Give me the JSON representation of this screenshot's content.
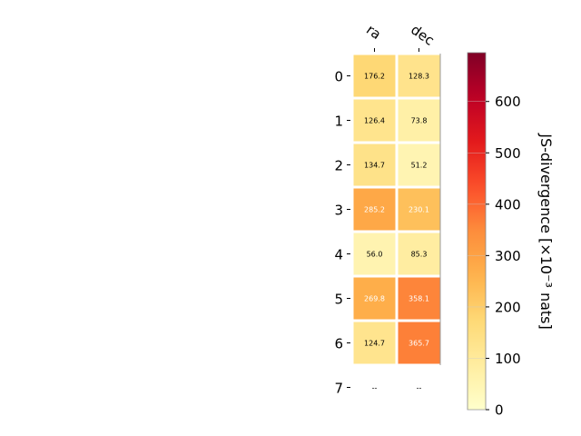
{
  "chart_data": {
    "type": "heatmap",
    "columns": [
      "ra",
      "dec"
    ],
    "rows": [
      "0",
      "1",
      "2",
      "3",
      "4",
      "5",
      "6",
      "7"
    ],
    "values": [
      [
        176.2,
        128.3
      ],
      [
        126.4,
        73.8
      ],
      [
        134.7,
        51.2
      ],
      [
        285.2,
        230.1
      ],
      [
        56.0,
        85.3
      ],
      [
        269.8,
        358.1
      ],
      [
        124.7,
        365.7
      ],
      [
        null,
        null
      ]
    ],
    "cell_labels": [
      [
        "176.2",
        "128.3"
      ],
      [
        "126.4",
        "73.8"
      ],
      [
        "134.7",
        "51.2"
      ],
      [
        "285.2",
        "230.1"
      ],
      [
        "56.0",
        "85.3"
      ],
      [
        "269.8",
        "358.1"
      ],
      [
        "124.7",
        "365.7"
      ],
      [
        "--",
        "--"
      ]
    ],
    "colorbar": {
      "label": "JS-divergence [×10⁻³ nats]",
      "range": [
        0,
        695
      ],
      "ticks": [
        0,
        100,
        200,
        300,
        400,
        500,
        600
      ],
      "colormap": "YlOrRd"
    }
  }
}
